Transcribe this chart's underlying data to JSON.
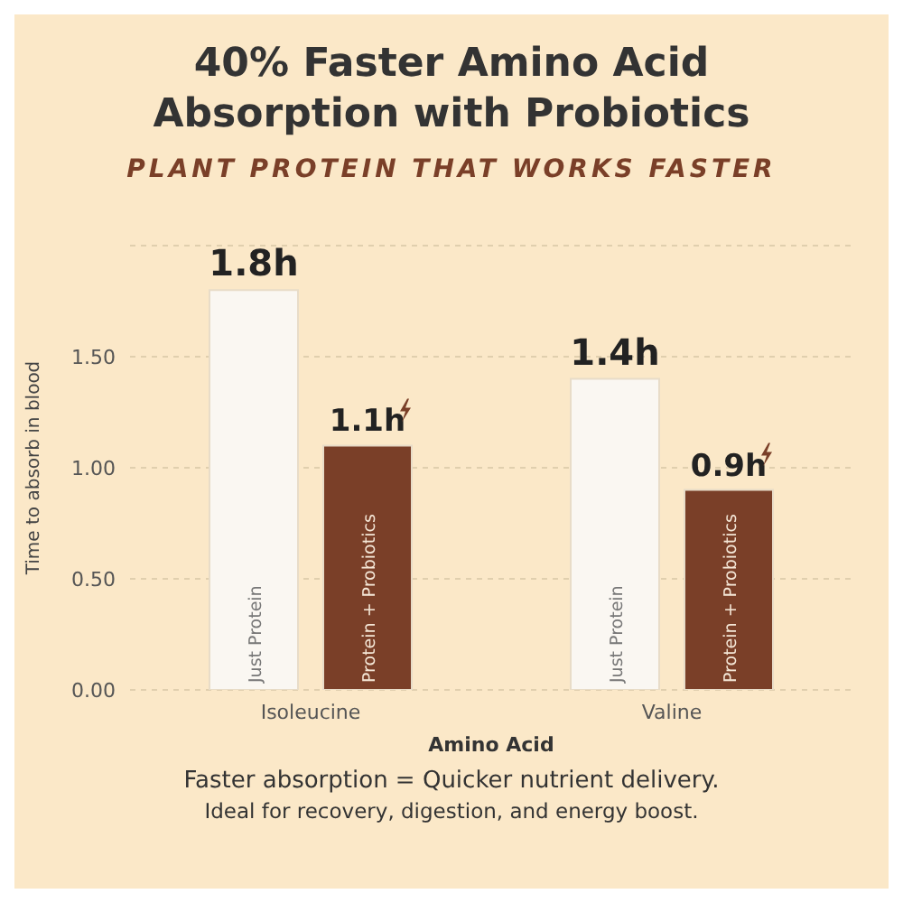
{
  "chart_data": {
    "type": "bar",
    "title": "40% Faster Amino Acid Absorption with Probiotics",
    "subtitle": "PLANT PROTEIN THAT WORKS FASTER",
    "xlabel": "Amino Acid",
    "ylabel": "Time to absorb in blood",
    "categories": [
      "Isoleucine",
      "Valine"
    ],
    "series": [
      {
        "name": "Just Protein",
        "color": "#faf7f2",
        "values": [
          1.8,
          1.4
        ],
        "value_labels": [
          "1.8h",
          "1.4h"
        ]
      },
      {
        "name": "Protein + Probiotics",
        "color": "#7a3f28",
        "values": [
          1.1,
          0.9
        ],
        "value_labels": [
          "1.1h",
          "0.9h"
        ]
      }
    ],
    "ylim": [
      0,
      2
    ],
    "yticks": [
      {
        "value": 0,
        "label": "0.00"
      },
      {
        "value": 0.5,
        "label": "0.50"
      },
      {
        "value": 1,
        "label": "1.00"
      },
      {
        "value": 1.5,
        "label": "1.50"
      }
    ],
    "grid": "y",
    "legend": false,
    "annotations": [
      "Faster absorption = Quicker nutrient delivery.",
      "Ideal for recovery, digestion, and energy boost."
    ]
  }
}
